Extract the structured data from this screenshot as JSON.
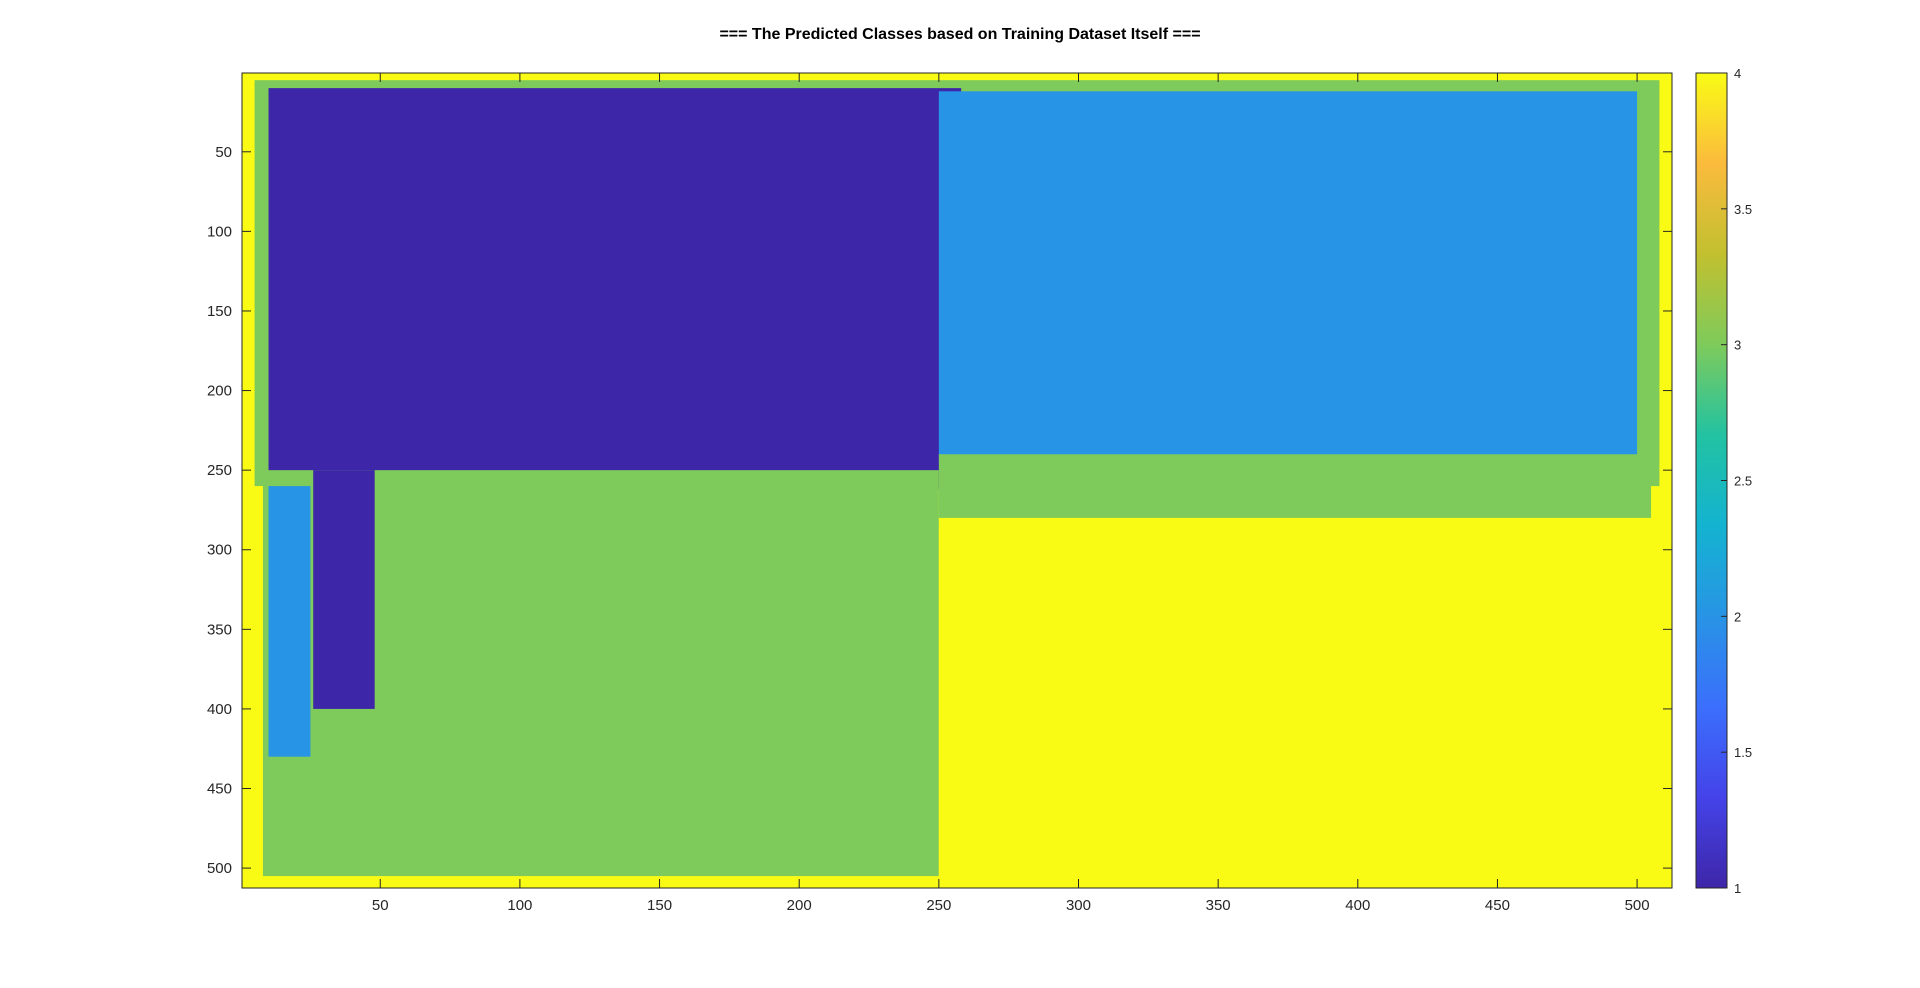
{
  "chart_data": {
    "type": "heatmap",
    "title": "=== The Predicted Classes based on Training Dataset Itself ===",
    "xlabel": "",
    "ylabel": "",
    "xlim": [
      0.5,
      512.5
    ],
    "ylim": [
      0.5,
      512.5
    ],
    "y_reversed": true,
    "x_ticks": [
      50,
      100,
      150,
      200,
      250,
      300,
      350,
      400,
      450,
      500
    ],
    "y_ticks": [
      50,
      100,
      150,
      200,
      250,
      300,
      350,
      400,
      450,
      500
    ],
    "colormap": "parula",
    "colorbar": {
      "clim": [
        1,
        4
      ],
      "ticks": [
        1,
        1.5,
        2,
        2.5,
        3,
        3.5,
        4
      ]
    },
    "class_colors": {
      "1": "#3e26a8",
      "2": "#2894e5",
      "3": "#7ecb5b",
      "4": "#f9fb15"
    },
    "grid": false,
    "regions": [
      {
        "class": 4,
        "x": [
          0.5,
          512.5
        ],
        "y": [
          0.5,
          512.5
        ]
      },
      {
        "class": 3,
        "x": [
          5,
          508
        ],
        "y": [
          5,
          260
        ]
      },
      {
        "class": 1,
        "x": [
          10,
          258
        ],
        "y": [
          10,
          262
        ]
      },
      {
        "class": 2,
        "x": [
          250,
          500
        ],
        "y": [
          12,
          245
        ]
      },
      {
        "class": 3,
        "x": [
          8,
          250
        ],
        "y": [
          250,
          505
        ]
      },
      {
        "class": 2,
        "x": [
          10,
          25
        ],
        "y": [
          260,
          430
        ]
      },
      {
        "class": 3,
        "x": [
          250,
          505
        ],
        "y": [
          240,
          285
        ]
      },
      {
        "class": 4,
        "x": [
          250,
          505
        ],
        "y": [
          280,
          505
        ]
      },
      {
        "class": 1,
        "x": [
          26,
          48
        ],
        "y": [
          250,
          400
        ]
      }
    ]
  }
}
